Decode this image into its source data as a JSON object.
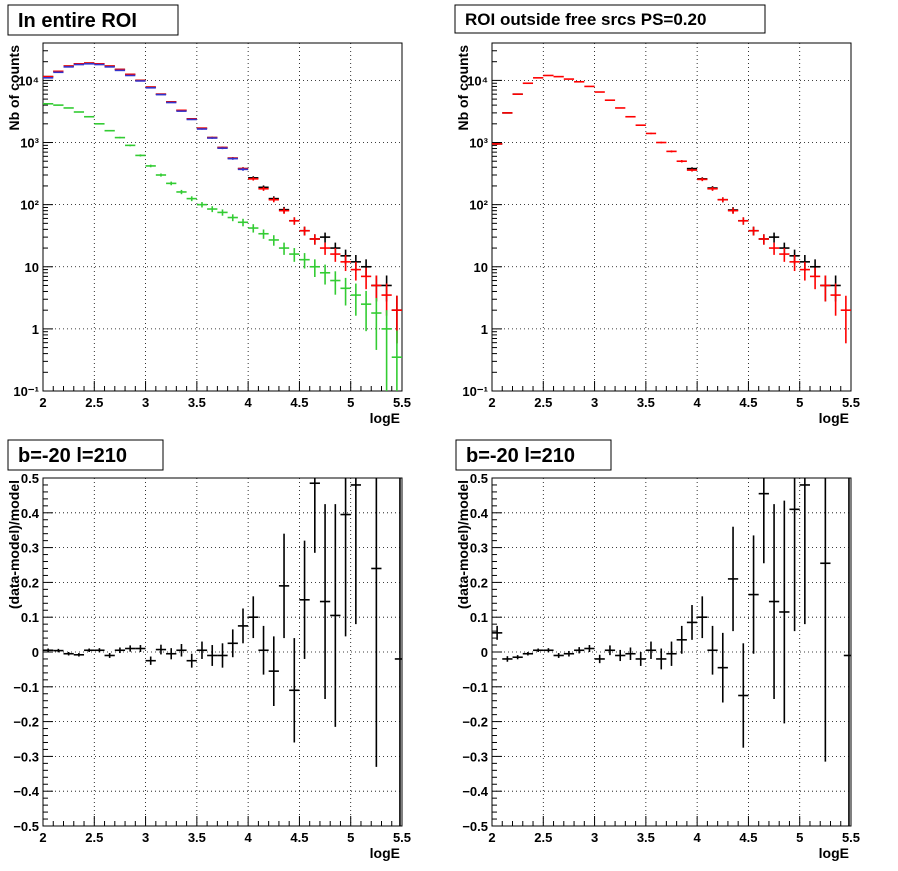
{
  "colors": {
    "data": "#000000",
    "model": "#ff0000",
    "component_blue": "#3333cc",
    "component_green": "#33cc33"
  },
  "chart_data": [
    {
      "type": "scatter",
      "title": "In entire ROI",
      "xlabel": "logE",
      "ylabel": "Nb of counts",
      "xlim": [
        2,
        5.5
      ],
      "ylim": [
        0.1,
        40000
      ],
      "yscale": "log",
      "xticks": [
        "2",
        "2.5",
        "3",
        "3.5",
        "4",
        "4.5",
        "5",
        "5.5"
      ],
      "yticks": [
        "10⁻¹",
        "1",
        "10",
        "10²",
        "10³",
        "10⁴"
      ],
      "grid": true,
      "series": [
        {
          "color": "#000000",
          "x": [
            2.05,
            2.15,
            2.25,
            2.35,
            2.45,
            2.55,
            2.65,
            2.75,
            2.85,
            2.95,
            3.05,
            3.15,
            3.25,
            3.35,
            3.45,
            3.55,
            3.65,
            3.75,
            3.85,
            3.95,
            4.05,
            4.15,
            4.25,
            4.35,
            4.45,
            4.55,
            4.65,
            4.75,
            4.85,
            4.95,
            5.05,
            5.15,
            5.25,
            5.35,
            5.45
          ],
          "y": [
            11500,
            14000,
            17000,
            18500,
            19000,
            18500,
            17000,
            15000,
            12500,
            10000,
            7800,
            6000,
            4500,
            3300,
            2400,
            1700,
            1200,
            830,
            560,
            380,
            270,
            190,
            125,
            83,
            55,
            38,
            28,
            30,
            20,
            15,
            12,
            10,
            5,
            5,
            2
          ]
        },
        {
          "color": "#ff0000",
          "x": [
            2.05,
            2.15,
            2.25,
            2.35,
            2.45,
            2.55,
            2.65,
            2.75,
            2.85,
            2.95,
            3.05,
            3.15,
            3.25,
            3.35,
            3.45,
            3.55,
            3.65,
            3.75,
            3.85,
            3.95,
            4.05,
            4.15,
            4.25,
            4.35,
            4.45,
            4.55,
            4.65,
            4.75,
            4.85,
            4.95,
            5.05,
            5.15,
            5.25,
            5.35,
            5.45
          ],
          "y": [
            11500,
            14000,
            17000,
            18500,
            19000,
            18500,
            17000,
            15000,
            12500,
            10000,
            7800,
            6000,
            4500,
            3300,
            2400,
            1700,
            1200,
            830,
            560,
            380,
            260,
            180,
            120,
            80,
            55,
            38,
            28,
            20,
            16,
            12,
            9,
            7,
            5,
            3.5,
            2
          ]
        },
        {
          "color": "#3333cc",
          "x": [
            2.05,
            2.15,
            2.25,
            2.35,
            2.45,
            2.55,
            2.65,
            2.75,
            2.85,
            2.95,
            3.05,
            3.15,
            3.25,
            3.35,
            3.45,
            3.55,
            3.65,
            3.75,
            3.85,
            3.95
          ],
          "y": [
            11000,
            13500,
            16500,
            18000,
            18500,
            18000,
            16500,
            14500,
            12000,
            9800,
            7600,
            5900,
            4400,
            3200,
            2350,
            1650,
            1180,
            810,
            550,
            370
          ]
        },
        {
          "color": "#33cc33",
          "x": [
            2.05,
            2.15,
            2.25,
            2.35,
            2.45,
            2.55,
            2.65,
            2.75,
            2.85,
            2.95,
            3.05,
            3.15,
            3.25,
            3.35,
            3.45,
            3.55,
            3.65,
            3.75,
            3.85,
            3.95,
            4.05,
            4.15,
            4.25,
            4.35,
            4.45,
            4.55,
            4.65,
            4.75,
            4.85,
            4.95,
            5.05,
            5.15,
            5.25,
            5.35,
            5.45
          ],
          "y": [
            4200,
            4000,
            3600,
            3100,
            2600,
            2000,
            1550,
            1200,
            900,
            620,
            420,
            300,
            220,
            160,
            125,
            100,
            85,
            75,
            62,
            52,
            42,
            34,
            27,
            20,
            16,
            13,
            10,
            8,
            6,
            4.5,
            3.5,
            2.5,
            1.8,
            1,
            0.35
          ]
        }
      ]
    },
    {
      "type": "scatter",
      "title": "ROI outside free srcs PS=0.20",
      "xlabel": "logE",
      "ylabel": "Nb of counts",
      "xlim": [
        2,
        5.5
      ],
      "ylim": [
        0.1,
        40000
      ],
      "yscale": "log",
      "xticks": [
        "2",
        "2.5",
        "3",
        "3.5",
        "4",
        "4.5",
        "5",
        "5.5"
      ],
      "yticks": [
        "10⁻¹",
        "1",
        "10",
        "10²",
        "10³",
        "10⁴"
      ],
      "grid": true,
      "series": [
        {
          "color": "#000000",
          "x": [
            2.05,
            2.15,
            2.25,
            3.95,
            4.05,
            4.15,
            4.25,
            4.35,
            4.45,
            4.55,
            4.65,
            4.75,
            4.85,
            4.95,
            5.05,
            5.15,
            5.25,
            5.35
          ],
          "y": [
            950,
            3000,
            6000,
            380,
            260,
            185,
            120,
            82,
            55,
            38,
            28,
            30,
            20,
            15,
            12,
            10,
            5,
            5
          ]
        },
        {
          "color": "#ff0000",
          "x": [
            2.05,
            2.15,
            2.25,
            2.35,
            2.45,
            2.55,
            2.65,
            2.75,
            2.85,
            2.95,
            3.05,
            3.15,
            3.25,
            3.35,
            3.45,
            3.55,
            3.65,
            3.75,
            3.85,
            3.95,
            4.05,
            4.15,
            4.25,
            4.35,
            4.45,
            4.55,
            4.65,
            4.75,
            4.85,
            4.95,
            5.05,
            5.15,
            5.25,
            5.35,
            5.45
          ],
          "y": [
            950,
            3000,
            6000,
            9000,
            11000,
            12000,
            11500,
            10500,
            9500,
            8000,
            6500,
            4800,
            3600,
            2600,
            1900,
            1400,
            1000,
            720,
            500,
            360,
            255,
            180,
            120,
            80,
            55,
            38,
            28,
            20,
            16,
            12,
            9,
            7,
            5,
            3.5,
            2
          ]
        }
      ]
    },
    {
      "type": "scatter",
      "title": "b=-20 l=210",
      "xlabel": "logE",
      "ylabel": "(data-model)/model",
      "xlim": [
        2,
        5.5
      ],
      "ylim": [
        -0.5,
        0.5
      ],
      "xticks": [
        "2",
        "2.5",
        "3",
        "3.5",
        "4",
        "4.5",
        "5",
        "5.5"
      ],
      "yticks": [
        "−0.5",
        "−0.4",
        "−0.3",
        "−0.2",
        "−0.1",
        "0",
        "0.1",
        "0.2",
        "0.3",
        "0.4",
        "0.5"
      ],
      "grid": true,
      "series": [
        {
          "color": "#000000",
          "x": [
            2.05,
            2.15,
            2.25,
            2.35,
            2.45,
            2.55,
            2.65,
            2.75,
            2.85,
            2.95,
            3.05,
            3.15,
            3.25,
            3.35,
            3.45,
            3.55,
            3.65,
            3.75,
            3.85,
            3.95,
            4.05,
            4.15,
            4.25,
            4.35,
            4.45,
            4.55,
            4.65,
            4.75,
            4.85,
            4.95,
            5.05,
            5.25,
            5.48
          ],
          "y": [
            0.005,
            0.004,
            -0.005,
            -0.008,
            0.005,
            0.005,
            -0.01,
            0.005,
            0.01,
            0.01,
            -0.025,
            0.007,
            -0.005,
            0.005,
            -0.025,
            0.005,
            -0.01,
            -0.01,
            0.025,
            0.075,
            0.1,
            0.005,
            -0.055,
            0.19,
            -0.11,
            0.15,
            0.485,
            0.145,
            0.105,
            0.395,
            0.48,
            0.24,
            -0.02
          ],
          "yerr": [
            0.005,
            0.005,
            0.005,
            0.005,
            0.005,
            0.006,
            0.007,
            0.008,
            0.009,
            0.01,
            0.012,
            0.014,
            0.016,
            0.018,
            0.02,
            0.025,
            0.03,
            0.035,
            0.04,
            0.05,
            0.06,
            0.07,
            0.1,
            0.15,
            0.15,
            0.17,
            0.2,
            0.28,
            0.32,
            0.35,
            0.4,
            0.57,
            0.6
          ]
        }
      ]
    },
    {
      "type": "scatter",
      "title": "b=-20 l=210",
      "xlabel": "logE",
      "ylabel": "(data-model)/model",
      "xlim": [
        2,
        5.5
      ],
      "ylim": [
        -0.5,
        0.5
      ],
      "xticks": [
        "2",
        "2.5",
        "3",
        "3.5",
        "4",
        "4.5",
        "5",
        "5.5"
      ],
      "yticks": [
        "−0.5",
        "−0.4",
        "−0.3",
        "−0.2",
        "−0.1",
        "0",
        "0.1",
        "0.2",
        "0.3",
        "0.4",
        "0.5"
      ],
      "grid": true,
      "series": [
        {
          "color": "#000000",
          "x": [
            2.05,
            2.15,
            2.25,
            2.35,
            2.45,
            2.55,
            2.65,
            2.75,
            2.85,
            2.95,
            3.05,
            3.15,
            3.25,
            3.35,
            3.45,
            3.55,
            3.65,
            3.75,
            3.85,
            3.95,
            4.05,
            4.15,
            4.25,
            4.35,
            4.45,
            4.55,
            4.65,
            4.75,
            4.85,
            4.95,
            5.05,
            5.25,
            5.48
          ],
          "y": [
            0.055,
            -0.02,
            -0.015,
            -0.005,
            0.005,
            0.005,
            -0.01,
            -0.005,
            0.005,
            0.01,
            -0.02,
            0.005,
            -0.01,
            -0.005,
            -0.02,
            0.005,
            -0.02,
            -0.005,
            0.035,
            0.085,
            0.1,
            0.005,
            -0.045,
            0.21,
            -0.125,
            0.165,
            0.455,
            0.145,
            0.115,
            0.41,
            0.48,
            0.255,
            -0.01
          ],
          "yerr": [
            0.02,
            0.008,
            0.006,
            0.005,
            0.005,
            0.006,
            0.007,
            0.008,
            0.009,
            0.01,
            0.012,
            0.014,
            0.016,
            0.018,
            0.02,
            0.025,
            0.03,
            0.035,
            0.04,
            0.05,
            0.06,
            0.07,
            0.1,
            0.15,
            0.15,
            0.17,
            0.2,
            0.28,
            0.32,
            0.35,
            0.4,
            0.57,
            0.6
          ]
        }
      ]
    }
  ]
}
